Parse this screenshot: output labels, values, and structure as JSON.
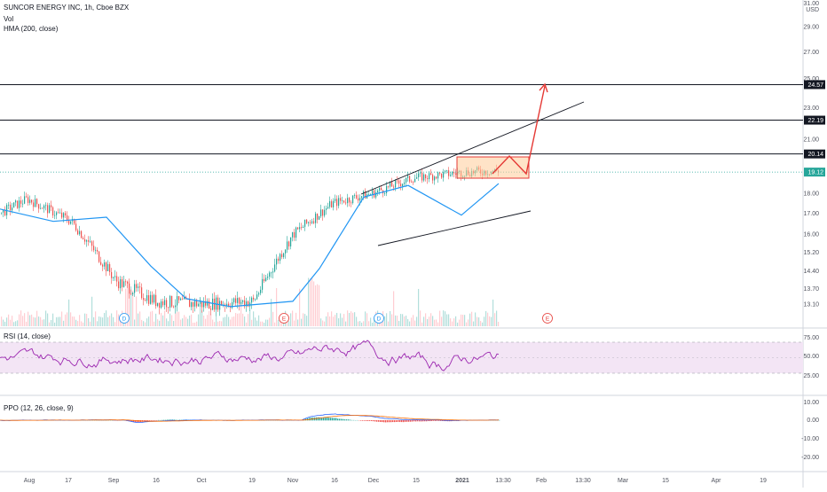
{
  "header": {
    "title": "SUNCOR ENERGY INC, 1h, Cboe BZX",
    "vol_label": "Vol",
    "hma_label": "HMA (200, close)",
    "currency": "USD",
    "top_price": "31.00"
  },
  "colors": {
    "up": "#26a69a",
    "down": "#ef5350",
    "hma": "#2196f3",
    "rsi": "#9c27b0",
    "rsi_band": "#f3e5f5",
    "arrow": "#e53935",
    "zone_fill": "#ffcc99",
    "zone_stroke": "#e53935",
    "hline": "#131722",
    "last_price": "#26a69a",
    "ppo": "#2962ff",
    "ppo_signal": "#ff6d00"
  },
  "price_axis": {
    "ticks": [
      "29.00",
      "27.00",
      "25.00",
      "23.00",
      "21.00",
      "19.00",
      "18.00",
      "17.00",
      "16.00",
      "15.20",
      "14.40",
      "13.70",
      "13.10"
    ],
    "markers": [
      {
        "value": "24.57",
        "type": "level"
      },
      {
        "value": "22.19",
        "type": "level"
      },
      {
        "value": "20.14",
        "type": "level"
      },
      {
        "value": "19.12",
        "type": "last"
      }
    ]
  },
  "rsi": {
    "label": "RSI (14, close)",
    "ticks": [
      "75.00",
      "50.00",
      "25.00"
    ],
    "band": [
      30,
      70
    ]
  },
  "ppo": {
    "label": "PPO (12, 26, close, 9)",
    "ticks": [
      "10.00",
      "0.00",
      "-10.00",
      "-20.00"
    ]
  },
  "x_axis": {
    "ticks": [
      "Aug",
      "17",
      "Sep",
      "16",
      "Oct",
      "19",
      "Nov",
      "16",
      "Dec",
      "15",
      "2021",
      "13:30",
      "Feb",
      "13:30",
      "Mar",
      "15",
      "Apr",
      "19"
    ]
  },
  "event_markers": [
    {
      "label": "D",
      "kind": "dividend"
    },
    {
      "label": "E",
      "kind": "earnings"
    },
    {
      "label": "D",
      "kind": "dividend"
    },
    {
      "label": "E",
      "kind": "earnings"
    }
  ],
  "chart_data": {
    "type": "line",
    "title": "SUNCOR ENERGY INC, 1h, Cboe BZX",
    "x": [
      "Aug",
      "17",
      "Sep",
      "16",
      "Oct",
      "19",
      "Nov",
      "16",
      "Dec",
      "15",
      "2021"
    ],
    "series": [
      {
        "name": "SUNCOR ENERGY INC",
        "values": [
          17.0,
          17.7,
          16.6,
          14.0,
          13.2,
          13.1,
          13.2,
          16.0,
          17.5,
          18.0,
          19.1
        ]
      },
      {
        "name": "HMA (200, close)",
        "values": [
          17.2,
          17.2,
          16.8,
          14.6,
          13.3,
          13.0,
          13.2,
          14.5,
          17.8,
          17.8,
          18.5
        ]
      }
    ],
    "rsi": [
      50,
      60,
      45,
      40,
      55,
      50,
      45,
      70,
      55,
      45,
      65
    ],
    "horizontal_levels": [
      24.57,
      22.19,
      20.14
    ],
    "last_price": 19.12,
    "ylim": [
      12.8,
      31.0
    ],
    "y_scale": "log"
  }
}
